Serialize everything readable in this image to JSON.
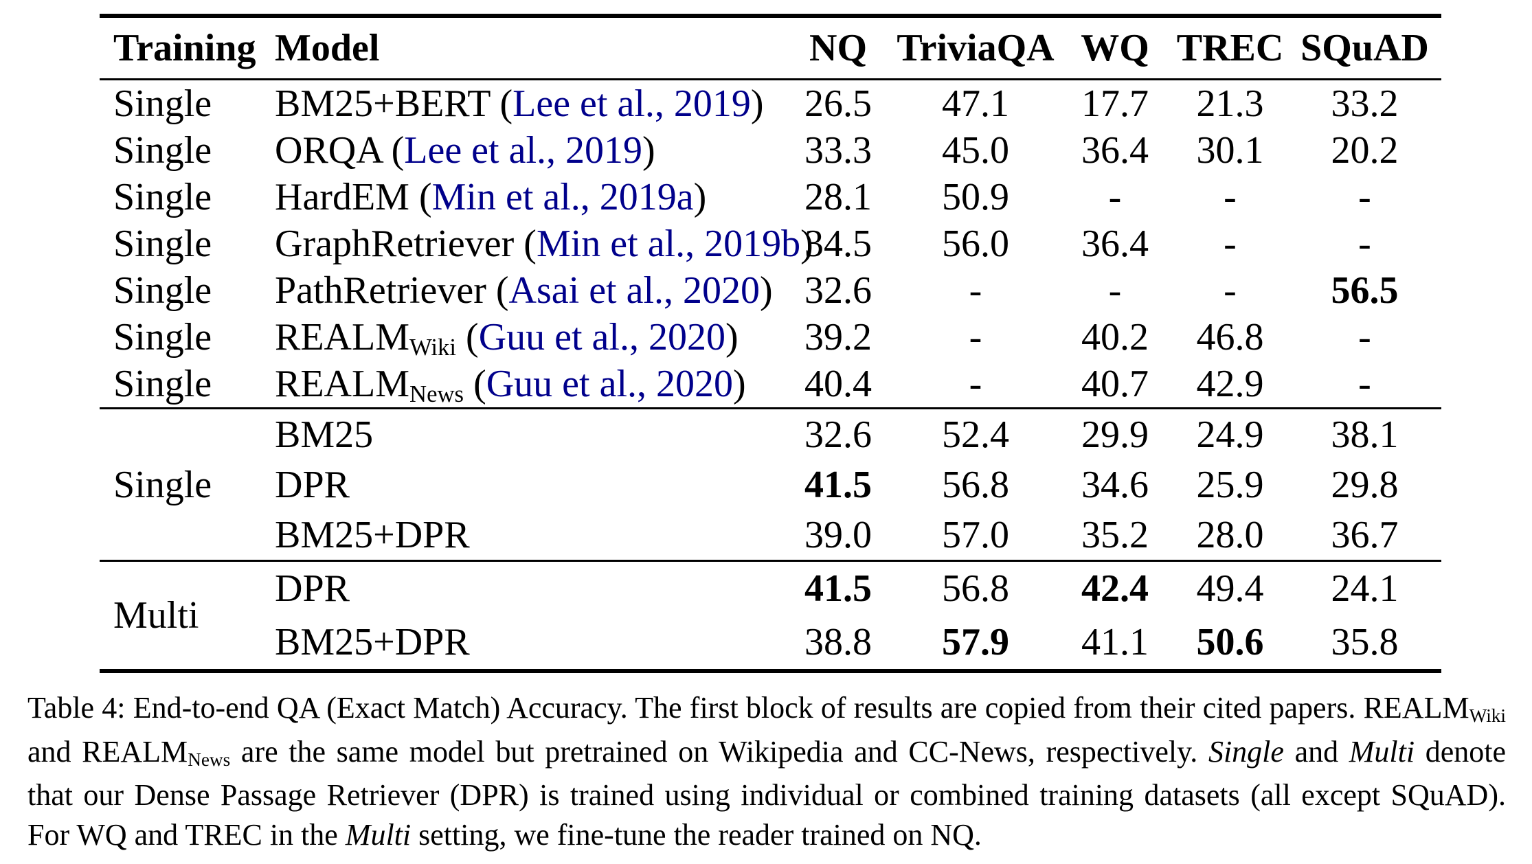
{
  "colors": {
    "citation_blue": "#00008B",
    "text_black": "#000000"
  },
  "table": {
    "headers": {
      "training": "Training",
      "model": "Model",
      "nq": "NQ",
      "triviaqa": "TriviaQA",
      "wq": "WQ",
      "trec": "TREC",
      "squad": "SQuAD"
    },
    "blocks": [
      {
        "training_per_row": true,
        "rows": [
          {
            "training": "Single",
            "model": {
              "name": "BM25+BERT",
              "sub": "",
              "cite": "Lee et al., 2019"
            },
            "values": [
              "26.5",
              "47.1",
              "17.7",
              "21.3",
              "33.2"
            ],
            "bold": [
              false,
              false,
              false,
              false,
              false
            ]
          },
          {
            "training": "Single",
            "model": {
              "name": "ORQA",
              "sub": "",
              "cite": "Lee et al., 2019"
            },
            "values": [
              "33.3",
              "45.0",
              "36.4",
              "30.1",
              "20.2"
            ],
            "bold": [
              false,
              false,
              false,
              false,
              false
            ]
          },
          {
            "training": "Single",
            "model": {
              "name": "HardEM",
              "sub": "",
              "cite": "Min et al., 2019a"
            },
            "values": [
              "28.1",
              "50.9",
              "-",
              "-",
              "-"
            ],
            "bold": [
              false,
              false,
              false,
              false,
              false
            ]
          },
          {
            "training": "Single",
            "model": {
              "name": "GraphRetriever",
              "sub": "",
              "cite": "Min et al., 2019b"
            },
            "values": [
              "34.5",
              "56.0",
              "36.4",
              "-",
              "-"
            ],
            "bold": [
              false,
              false,
              false,
              false,
              false
            ]
          },
          {
            "training": "Single",
            "model": {
              "name": "PathRetriever",
              "sub": "",
              "cite": "Asai et al., 2020"
            },
            "values": [
              "32.6",
              "-",
              "-",
              "-",
              "56.5"
            ],
            "bold": [
              false,
              false,
              false,
              false,
              true
            ]
          },
          {
            "training": "Single",
            "model": {
              "name": "REALM",
              "sub": "Wiki",
              "cite": "Guu et al., 2020"
            },
            "values": [
              "39.2",
              "-",
              "40.2",
              "46.8",
              "-"
            ],
            "bold": [
              false,
              false,
              false,
              false,
              false
            ]
          },
          {
            "training": "Single",
            "model": {
              "name": "REALM",
              "sub": "News",
              "cite": "Guu et al., 2020"
            },
            "values": [
              "40.4",
              "-",
              "40.7",
              "42.9",
              "-"
            ],
            "bold": [
              false,
              false,
              false,
              false,
              false
            ]
          }
        ]
      },
      {
        "training_per_row": false,
        "training": "Single",
        "rows": [
          {
            "model": {
              "name": "BM25",
              "sub": "",
              "cite": ""
            },
            "values": [
              "32.6",
              "52.4",
              "29.9",
              "24.9",
              "38.1"
            ],
            "bold": [
              false,
              false,
              false,
              false,
              false
            ]
          },
          {
            "model": {
              "name": "DPR",
              "sub": "",
              "cite": ""
            },
            "values": [
              "41.5",
              "56.8",
              "34.6",
              "25.9",
              "29.8"
            ],
            "bold": [
              true,
              false,
              false,
              false,
              false
            ]
          },
          {
            "model": {
              "name": "BM25+DPR",
              "sub": "",
              "cite": ""
            },
            "values": [
              "39.0",
              "57.0",
              "35.2",
              "28.0",
              "36.7"
            ],
            "bold": [
              false,
              false,
              false,
              false,
              false
            ]
          }
        ]
      },
      {
        "training_per_row": false,
        "training": "Multi",
        "rows": [
          {
            "model": {
              "name": "DPR",
              "sub": "",
              "cite": ""
            },
            "values": [
              "41.5",
              "56.8",
              "42.4",
              "49.4",
              "24.1"
            ],
            "bold": [
              true,
              false,
              true,
              false,
              false
            ]
          },
          {
            "model": {
              "name": "BM25+DPR",
              "sub": "",
              "cite": ""
            },
            "values": [
              "38.8",
              "57.9",
              "41.1",
              "50.6",
              "35.8"
            ],
            "bold": [
              false,
              true,
              false,
              true,
              false
            ]
          }
        ]
      }
    ]
  },
  "caption": {
    "segments": [
      {
        "t": "Table 4: End-to-end QA (Exact Match) Accuracy. The first block of results are copied from their cited papers. ",
        "s": "n"
      },
      {
        "t": "REALM",
        "s": "n"
      },
      {
        "t": "Wiki",
        "s": "sub"
      },
      {
        "t": " and REALM",
        "s": "n"
      },
      {
        "t": "News",
        "s": "sub"
      },
      {
        "t": " are the same model but pretrained on Wikipedia and CC-News, respectively. ",
        "s": "n"
      },
      {
        "t": "Single",
        "s": "i"
      },
      {
        "t": " and ",
        "s": "n"
      },
      {
        "t": "Multi",
        "s": "i"
      },
      {
        "t": " denote that our Dense Passage Retriever (DPR) is trained using individual or combined training datasets (all except SQuAD). For WQ and TREC in the ",
        "s": "n"
      },
      {
        "t": "Multi",
        "s": "i"
      },
      {
        "t": " setting, we fine-tune the reader trained on NQ.",
        "s": "n"
      }
    ]
  }
}
